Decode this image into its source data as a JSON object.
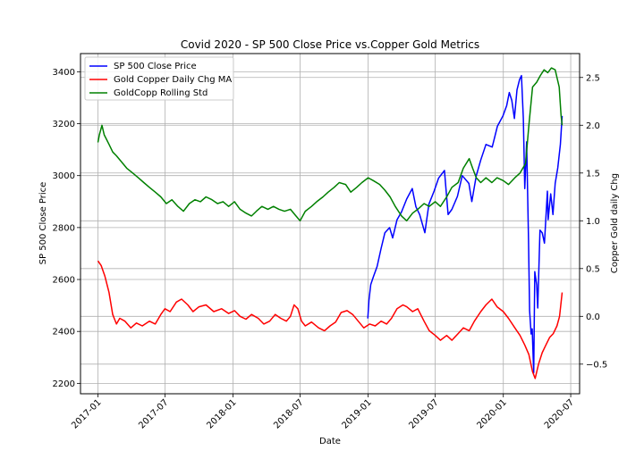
{
  "chart_data": {
    "type": "line",
    "title": "Covid 2020 - SP 500 Close Price vs.Copper Gold Metrics",
    "xlabel": "Date",
    "ylabel_left": "SP 500 Close Price",
    "ylabel_right": "Copper Gold daily Chg",
    "x_ticks": [
      "2017-01",
      "2017-07",
      "2018-01",
      "2018-07",
      "2019-01",
      "2019-07",
      "2020-01",
      "2020-07"
    ],
    "y_left_ticks": [
      2200,
      2400,
      2600,
      2800,
      3000,
      3200,
      3400
    ],
    "y_right_ticks": [
      -0.5,
      0.0,
      0.5,
      1.0,
      1.5,
      2.0,
      2.5
    ],
    "y_left_range": [
      2160,
      3470
    ],
    "y_right_range": [
      -0.81,
      2.75
    ],
    "x_range": [
      "2016-11-15",
      "2020-07-25"
    ],
    "grid": true,
    "legend_position": "top-left",
    "series": [
      {
        "name": "SP 500 Close Price",
        "axis": "left",
        "color": "#0000ff",
        "points": [
          [
            "2018-12-31",
            2450
          ],
          [
            "2019-01-03",
            2520
          ],
          [
            "2019-01-08",
            2580
          ],
          [
            "2019-01-15",
            2610
          ],
          [
            "2019-01-25",
            2650
          ],
          [
            "2019-02-05",
            2720
          ],
          [
            "2019-02-15",
            2780
          ],
          [
            "2019-02-28",
            2800
          ],
          [
            "2019-03-08",
            2760
          ],
          [
            "2019-03-20",
            2830
          ],
          [
            "2019-04-01",
            2860
          ],
          [
            "2019-04-15",
            2910
          ],
          [
            "2019-04-30",
            2950
          ],
          [
            "2019-05-10",
            2880
          ],
          [
            "2019-05-20",
            2850
          ],
          [
            "2019-06-03",
            2780
          ],
          [
            "2019-06-14",
            2890
          ],
          [
            "2019-06-28",
            2940
          ],
          [
            "2019-07-10",
            2990
          ],
          [
            "2019-07-26",
            3020
          ],
          [
            "2019-08-05",
            2850
          ],
          [
            "2019-08-15",
            2870
          ],
          [
            "2019-08-30",
            2920
          ],
          [
            "2019-09-12",
            3000
          ],
          [
            "2019-09-30",
            2970
          ],
          [
            "2019-10-08",
            2900
          ],
          [
            "2019-10-20",
            3000
          ],
          [
            "2019-11-01",
            3060
          ],
          [
            "2019-11-15",
            3120
          ],
          [
            "2019-12-02",
            3110
          ],
          [
            "2019-12-16",
            3190
          ],
          [
            "2019-12-31",
            3230
          ],
          [
            "2020-01-10",
            3270
          ],
          [
            "2020-01-17",
            3320
          ],
          [
            "2020-01-24",
            3290
          ],
          [
            "2020-01-31",
            3220
          ],
          [
            "2020-02-07",
            3330
          ],
          [
            "2020-02-14",
            3370
          ],
          [
            "2020-02-19",
            3385
          ],
          [
            "2020-02-24",
            3220
          ],
          [
            "2020-02-28",
            2950
          ],
          [
            "2020-03-04",
            3130
          ],
          [
            "2020-03-09",
            2750
          ],
          [
            "2020-03-12",
            2480
          ],
          [
            "2020-03-16",
            2390
          ],
          [
            "2020-03-19",
            2410
          ],
          [
            "2020-03-23",
            2240
          ],
          [
            "2020-03-26",
            2630
          ],
          [
            "2020-03-31",
            2580
          ],
          [
            "2020-04-03",
            2490
          ],
          [
            "2020-04-09",
            2790
          ],
          [
            "2020-04-15",
            2780
          ],
          [
            "2020-04-21",
            2740
          ],
          [
            "2020-04-29",
            2940
          ],
          [
            "2020-05-01",
            2830
          ],
          [
            "2020-05-08",
            2930
          ],
          [
            "2020-05-14",
            2850
          ],
          [
            "2020-05-20",
            2970
          ],
          [
            "2020-05-27",
            3030
          ],
          [
            "2020-06-03",
            3120
          ],
          [
            "2020-06-08",
            3230
          ]
        ]
      },
      {
        "name": "Gold Copper Daily Chg MA",
        "axis": "right",
        "color": "#ff0000",
        "points": [
          [
            "2017-01-01",
            0.58
          ],
          [
            "2017-01-10",
            0.53
          ],
          [
            "2017-01-20",
            0.42
          ],
          [
            "2017-01-31",
            0.25
          ],
          [
            "2017-02-10",
            0.02
          ],
          [
            "2017-02-20",
            -0.08
          ],
          [
            "2017-03-01",
            -0.02
          ],
          [
            "2017-03-15",
            -0.05
          ],
          [
            "2017-03-31",
            -0.12
          ],
          [
            "2017-04-15",
            -0.07
          ],
          [
            "2017-05-01",
            -0.1
          ],
          [
            "2017-05-20",
            -0.05
          ],
          [
            "2017-06-05",
            -0.08
          ],
          [
            "2017-06-20",
            0.02
          ],
          [
            "2017-07-01",
            0.08
          ],
          [
            "2017-07-15",
            0.05
          ],
          [
            "2017-08-01",
            0.15
          ],
          [
            "2017-08-15",
            0.18
          ],
          [
            "2017-09-01",
            0.12
          ],
          [
            "2017-09-15",
            0.05
          ],
          [
            "2017-10-01",
            0.1
          ],
          [
            "2017-10-20",
            0.12
          ],
          [
            "2017-11-10",
            0.05
          ],
          [
            "2017-12-01",
            0.08
          ],
          [
            "2017-12-20",
            0.03
          ],
          [
            "2018-01-05",
            0.06
          ],
          [
            "2018-01-20",
            0.0
          ],
          [
            "2018-02-05",
            -0.03
          ],
          [
            "2018-02-20",
            0.02
          ],
          [
            "2018-03-10",
            -0.02
          ],
          [
            "2018-03-25",
            -0.08
          ],
          [
            "2018-04-10",
            -0.05
          ],
          [
            "2018-04-25",
            0.02
          ],
          [
            "2018-05-10",
            -0.02
          ],
          [
            "2018-05-25",
            -0.05
          ],
          [
            "2018-06-05",
            0.0
          ],
          [
            "2018-06-15",
            0.12
          ],
          [
            "2018-06-25",
            0.08
          ],
          [
            "2018-07-05",
            -0.05
          ],
          [
            "2018-07-15",
            -0.1
          ],
          [
            "2018-08-01",
            -0.06
          ],
          [
            "2018-08-20",
            -0.12
          ],
          [
            "2018-09-05",
            -0.15
          ],
          [
            "2018-09-20",
            -0.1
          ],
          [
            "2018-10-05",
            -0.06
          ],
          [
            "2018-10-20",
            0.04
          ],
          [
            "2018-11-05",
            0.06
          ],
          [
            "2018-11-20",
            0.02
          ],
          [
            "2018-12-05",
            -0.05
          ],
          [
            "2018-12-20",
            -0.12
          ],
          [
            "2019-01-05",
            -0.08
          ],
          [
            "2019-01-20",
            -0.1
          ],
          [
            "2019-02-05",
            -0.05
          ],
          [
            "2019-02-20",
            -0.08
          ],
          [
            "2019-03-05",
            -0.02
          ],
          [
            "2019-03-20",
            0.08
          ],
          [
            "2019-04-05",
            0.12
          ],
          [
            "2019-04-15",
            0.1
          ],
          [
            "2019-05-01",
            0.05
          ],
          [
            "2019-05-15",
            0.08
          ],
          [
            "2019-06-01",
            -0.05
          ],
          [
            "2019-06-15",
            -0.15
          ],
          [
            "2019-07-01",
            -0.2
          ],
          [
            "2019-07-15",
            -0.25
          ],
          [
            "2019-08-01",
            -0.2
          ],
          [
            "2019-08-15",
            -0.25
          ],
          [
            "2019-09-01",
            -0.18
          ],
          [
            "2019-09-15",
            -0.12
          ],
          [
            "2019-10-01",
            -0.15
          ],
          [
            "2019-10-15",
            -0.05
          ],
          [
            "2019-11-01",
            0.05
          ],
          [
            "2019-11-15",
            0.12
          ],
          [
            "2019-12-01",
            0.18
          ],
          [
            "2019-12-15",
            0.1
          ],
          [
            "2020-01-01",
            0.05
          ],
          [
            "2020-01-15",
            -0.02
          ],
          [
            "2020-02-01",
            -0.12
          ],
          [
            "2020-02-15",
            -0.2
          ],
          [
            "2020-02-28",
            -0.3
          ],
          [
            "2020-03-10",
            -0.4
          ],
          [
            "2020-03-20",
            -0.58
          ],
          [
            "2020-03-27",
            -0.65
          ],
          [
            "2020-04-05",
            -0.5
          ],
          [
            "2020-04-15",
            -0.38
          ],
          [
            "2020-04-25",
            -0.3
          ],
          [
            "2020-05-05",
            -0.22
          ],
          [
            "2020-05-15",
            -0.18
          ],
          [
            "2020-05-25",
            -0.1
          ],
          [
            "2020-06-01",
            0.0
          ],
          [
            "2020-06-08",
            0.25
          ]
        ]
      },
      {
        "name": "GoldCopp Rolling Std",
        "axis": "right",
        "color": "#008000",
        "points": [
          [
            "2017-01-01",
            1.82
          ],
          [
            "2017-01-05",
            1.9
          ],
          [
            "2017-01-12",
            2.0
          ],
          [
            "2017-01-18",
            1.9
          ],
          [
            "2017-01-31",
            1.8
          ],
          [
            "2017-02-10",
            1.72
          ],
          [
            "2017-02-20",
            1.68
          ],
          [
            "2017-03-05",
            1.62
          ],
          [
            "2017-03-20",
            1.55
          ],
          [
            "2017-04-05",
            1.5
          ],
          [
            "2017-04-20",
            1.45
          ],
          [
            "2017-05-05",
            1.4
          ],
          [
            "2017-05-20",
            1.35
          ],
          [
            "2017-06-05",
            1.3
          ],
          [
            "2017-06-20",
            1.25
          ],
          [
            "2017-07-05",
            1.18
          ],
          [
            "2017-07-20",
            1.22
          ],
          [
            "2017-08-05",
            1.15
          ],
          [
            "2017-08-20",
            1.1
          ],
          [
            "2017-09-05",
            1.18
          ],
          [
            "2017-09-20",
            1.22
          ],
          [
            "2017-10-05",
            1.2
          ],
          [
            "2017-10-20",
            1.25
          ],
          [
            "2017-11-05",
            1.22
          ],
          [
            "2017-11-20",
            1.18
          ],
          [
            "2017-12-05",
            1.2
          ],
          [
            "2017-12-20",
            1.15
          ],
          [
            "2018-01-05",
            1.2
          ],
          [
            "2018-01-20",
            1.12
          ],
          [
            "2018-02-05",
            1.08
          ],
          [
            "2018-02-20",
            1.05
          ],
          [
            "2018-03-05",
            1.1
          ],
          [
            "2018-03-20",
            1.15
          ],
          [
            "2018-04-05",
            1.12
          ],
          [
            "2018-04-20",
            1.15
          ],
          [
            "2018-05-05",
            1.12
          ],
          [
            "2018-05-20",
            1.1
          ],
          [
            "2018-06-05",
            1.12
          ],
          [
            "2018-06-20",
            1.05
          ],
          [
            "2018-07-01",
            1.0
          ],
          [
            "2018-07-15",
            1.1
          ],
          [
            "2018-08-01",
            1.15
          ],
          [
            "2018-08-15",
            1.2
          ],
          [
            "2018-09-01",
            1.25
          ],
          [
            "2018-09-15",
            1.3
          ],
          [
            "2018-10-01",
            1.35
          ],
          [
            "2018-10-15",
            1.4
          ],
          [
            "2018-11-01",
            1.38
          ],
          [
            "2018-11-15",
            1.3
          ],
          [
            "2018-12-01",
            1.35
          ],
          [
            "2018-12-15",
            1.4
          ],
          [
            "2019-01-01",
            1.45
          ],
          [
            "2019-01-15",
            1.42
          ],
          [
            "2019-02-01",
            1.38
          ],
          [
            "2019-02-15",
            1.32
          ],
          [
            "2019-03-01",
            1.25
          ],
          [
            "2019-03-15",
            1.15
          ],
          [
            "2019-04-01",
            1.05
          ],
          [
            "2019-04-15",
            1.0
          ],
          [
            "2019-05-01",
            1.08
          ],
          [
            "2019-05-15",
            1.12
          ],
          [
            "2019-06-01",
            1.18
          ],
          [
            "2019-06-15",
            1.15
          ],
          [
            "2019-07-01",
            1.2
          ],
          [
            "2019-07-15",
            1.15
          ],
          [
            "2019-08-01",
            1.25
          ],
          [
            "2019-08-15",
            1.35
          ],
          [
            "2019-09-01",
            1.4
          ],
          [
            "2019-09-15",
            1.55
          ],
          [
            "2019-10-01",
            1.65
          ],
          [
            "2019-10-10",
            1.55
          ],
          [
            "2019-10-20",
            1.45
          ],
          [
            "2019-11-01",
            1.4
          ],
          [
            "2019-11-15",
            1.45
          ],
          [
            "2019-12-01",
            1.4
          ],
          [
            "2019-12-15",
            1.45
          ],
          [
            "2020-01-01",
            1.42
          ],
          [
            "2020-01-15",
            1.38
          ],
          [
            "2020-02-01",
            1.45
          ],
          [
            "2020-02-15",
            1.5
          ],
          [
            "2020-03-01",
            1.6
          ],
          [
            "2020-03-10",
            2.0
          ],
          [
            "2020-03-20",
            2.4
          ],
          [
            "2020-03-31",
            2.45
          ],
          [
            "2020-04-10",
            2.52
          ],
          [
            "2020-04-20",
            2.58
          ],
          [
            "2020-04-30",
            2.55
          ],
          [
            "2020-05-10",
            2.6
          ],
          [
            "2020-05-20",
            2.58
          ],
          [
            "2020-05-31",
            2.4
          ],
          [
            "2020-06-05",
            2.1
          ],
          [
            "2020-06-08",
            2.0
          ]
        ]
      }
    ]
  }
}
